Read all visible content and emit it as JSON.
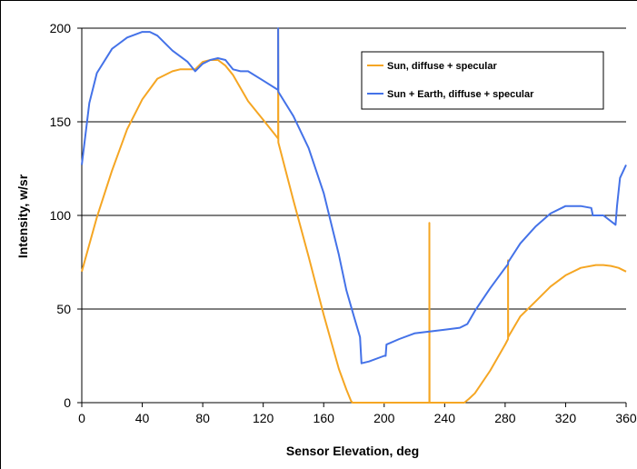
{
  "chart_data": {
    "type": "line",
    "title": "",
    "xlabel": "Sensor Elevation, deg",
    "ylabel": "Intensity, w/sr",
    "xlim": [
      0,
      360
    ],
    "ylim": [
      0,
      200
    ],
    "xticks": [
      0,
      40,
      80,
      120,
      160,
      200,
      240,
      280,
      320,
      360
    ],
    "yticks": [
      0,
      50,
      100,
      150,
      200
    ],
    "xtick_labels": [
      "0",
      "40",
      "80",
      "120",
      "160",
      "200",
      "240",
      "280",
      "320",
      "360"
    ],
    "ytick_labels": [
      "0",
      "50",
      "100",
      "150",
      "200"
    ],
    "grid": "horizontal",
    "legend_position": "top-right",
    "series": [
      {
        "name": "Sun, diffuse + specular",
        "color": "#f5a623",
        "x": [
          0,
          10,
          20,
          30,
          40,
          50,
          60,
          65,
          70,
          75,
          80,
          85,
          90,
          95,
          100,
          110,
          120,
          129.9,
          129.9,
          130,
          140,
          150,
          160,
          170,
          175,
          178,
          179,
          200,
          229.9,
          229.9,
          230,
          250,
          253,
          256,
          260,
          270,
          280,
          281.9,
          281.9,
          282,
          290,
          300,
          310,
          320,
          330,
          340,
          345,
          350,
          355,
          360
        ],
        "y": [
          70,
          99,
          124,
          146,
          162,
          173,
          177,
          178,
          178,
          178,
          182,
          183,
          183,
          180,
          175,
          161,
          151,
          141,
          200,
          139,
          108,
          78,
          47,
          18,
          7,
          1,
          0,
          0,
          0,
          96,
          0,
          0,
          0,
          2,
          5,
          17,
          31,
          34,
          76,
          35,
          46,
          54,
          62,
          68,
          72,
          73.5,
          73.5,
          73,
          72,
          70
        ]
      },
      {
        "name": "Sun + Earth, diffuse + specular",
        "color": "#4472e8",
        "x": [
          0,
          5,
          10,
          20,
          30,
          40,
          45,
          50,
          60,
          70,
          75,
          80,
          85,
          90,
          95,
          100,
          105,
          110,
          120,
          129.9,
          129.9,
          130,
          140,
          150,
          160,
          170,
          175,
          180,
          184,
          185,
          190,
          200,
          201,
          201.5,
          210,
          220,
          229.9,
          229.9,
          230,
          240,
          250,
          255,
          260,
          270,
          280,
          281.9,
          281.9,
          282,
          290,
          300,
          310,
          320,
          330,
          337,
          338,
          345,
          353,
          354,
          356,
          360
        ],
        "y": [
          127,
          160,
          176,
          189,
          195,
          198,
          198,
          196,
          188,
          182,
          177,
          181,
          183,
          184,
          183,
          178,
          177,
          177,
          172,
          167,
          200,
          166,
          153,
          136,
          112,
          79,
          60,
          46,
          35,
          21,
          22,
          25,
          25,
          31,
          34,
          37,
          38,
          38,
          38,
          39,
          40,
          42,
          49,
          61,
          72,
          74,
          74,
          75,
          85,
          94,
          101,
          105,
          105,
          104,
          100,
          100,
          95,
          105,
          120,
          127
        ]
      }
    ]
  }
}
